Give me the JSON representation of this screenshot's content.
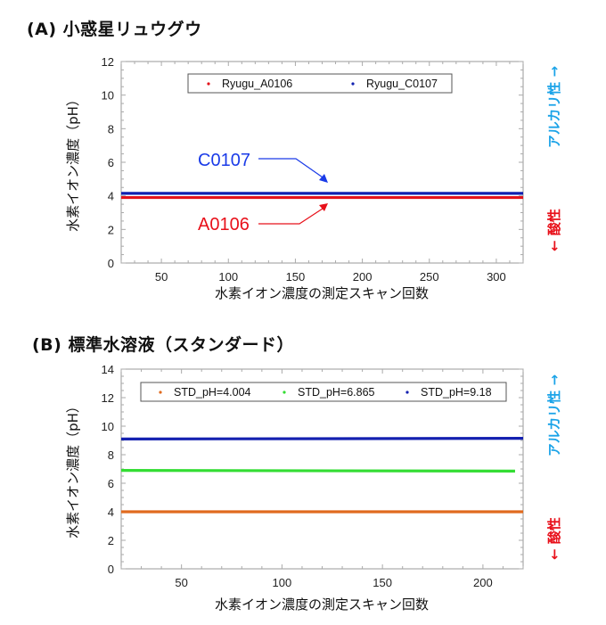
{
  "panels": {
    "a": {
      "title": "(A) 小惑星リュウグウ",
      "ylabel": "水素イオン濃度（pH）",
      "xlabel": "水素イオン濃度の測定スキャン回数",
      "side_top": "アルカリ性 →",
      "side_bottom": "← 酸性",
      "legend": [
        "Ryugu_A0106",
        "Ryugu_C0107"
      ],
      "annotations": [
        "C0107",
        "A0106"
      ]
    },
    "b": {
      "title": "(B) 標準水溶液（スタンダード）",
      "ylabel": "水素イオン濃度（pH）",
      "xlabel": "水素イオン濃度の測定スキャン回数",
      "side_top": "アルカリ性 →",
      "side_bottom": "← 酸性",
      "legend": [
        "STD_pH=4.004",
        "STD_pH=6.865",
        "STD_pH=9.18"
      ]
    }
  },
  "colors": {
    "alkaline": "#1aa3e8",
    "acidic": "#e8101a",
    "A0106": "#e3121b",
    "C0107": "#1020b0",
    "std4": "#e06a1e",
    "std6": "#33dd33",
    "std9": "#1420b0"
  },
  "chart_data": [
    {
      "type": "line",
      "title": "(A) 小惑星リュウグウ",
      "xlabel": "水素イオン濃度の測定スキャン回数",
      "ylabel": "水素イオン濃度（pH）",
      "xlim": [
        20,
        320
      ],
      "ylim": [
        0,
        12
      ],
      "xticks": [
        50,
        100,
        150,
        200,
        250,
        300
      ],
      "yticks": [
        0,
        2,
        4,
        6,
        8,
        10,
        12
      ],
      "legend_position": "top-center",
      "grid": false,
      "series": [
        {
          "name": "Ryugu_A0106",
          "x": [
            20,
            320
          ],
          "values": [
            3.9,
            3.9
          ],
          "color": "#e3121b"
        },
        {
          "name": "Ryugu_C0107",
          "x": [
            20,
            320
          ],
          "values": [
            4.15,
            4.15
          ],
          "color": "#1020b0"
        }
      ],
      "annotations": [
        {
          "text": "C0107",
          "color": "#1a3be8",
          "points_to": [
            175,
            4.6
          ]
        },
        {
          "text": "A0106",
          "color": "#e8101a",
          "points_to": [
            175,
            3.6
          ]
        },
        {
          "text": "アルカリ性 →",
          "position": "right-top",
          "color": "#1aa3e8"
        },
        {
          "text": "← 酸性",
          "position": "right-bottom",
          "color": "#e8101a"
        }
      ]
    },
    {
      "type": "line",
      "title": "(B) 標準水溶液（スタンダード）",
      "xlabel": "水素イオン濃度の測定スキャン回数",
      "ylabel": "水素イオン濃度（pH）",
      "xlim": [
        20,
        220
      ],
      "ylim": [
        0,
        14
      ],
      "xticks": [
        50,
        100,
        150,
        200
      ],
      "yticks": [
        0,
        2,
        4,
        6,
        8,
        10,
        12,
        14
      ],
      "legend_position": "top-center",
      "grid": false,
      "series": [
        {
          "name": "STD_pH=4.004",
          "x": [
            20,
            220
          ],
          "values": [
            4.0,
            4.0
          ],
          "color": "#e06a1e"
        },
        {
          "name": "STD_pH=6.865",
          "x": [
            20,
            216
          ],
          "values": [
            6.9,
            6.85
          ],
          "color": "#33dd33"
        },
        {
          "name": "STD_pH=9.18",
          "x": [
            20,
            220
          ],
          "values": [
            9.1,
            9.15
          ],
          "color": "#1420b0"
        }
      ],
      "annotations": [
        {
          "text": "アルカリ性 →",
          "position": "right-top",
          "color": "#1aa3e8"
        },
        {
          "text": "← 酸性",
          "position": "right-bottom",
          "color": "#e8101a"
        }
      ]
    }
  ]
}
